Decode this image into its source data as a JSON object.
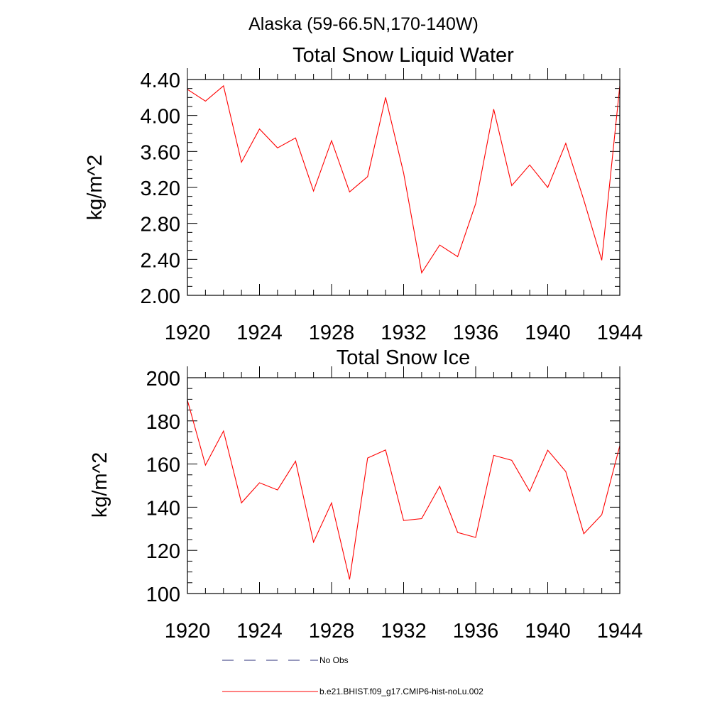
{
  "header": {
    "title": "Alaska (59-66.5N,170-140W)"
  },
  "chart_data": [
    {
      "type": "line",
      "title": "Total Snow Liquid Water",
      "ylabel": "kg/m^2",
      "xlabel": "",
      "xlim": [
        1920,
        1944
      ],
      "ylim": [
        2.0,
        4.4
      ],
      "xticks": [
        "1920",
        "1924",
        "1928",
        "1932",
        "1936",
        "1940",
        "1944"
      ],
      "yticks": [
        "2.00",
        "2.40",
        "2.80",
        "3.20",
        "3.60",
        "4.00",
        "4.40"
      ],
      "x": [
        1920,
        1921,
        1922,
        1923,
        1924,
        1925,
        1926,
        1927,
        1928,
        1929,
        1930,
        1931,
        1932,
        1933,
        1934,
        1935,
        1936,
        1937,
        1938,
        1939,
        1940,
        1941,
        1942,
        1943,
        1944
      ],
      "series": [
        {
          "name": "b.e21.BHIST.f09_g17.CMIP6-hist-noLu.002",
          "color": "#ff0000",
          "values": [
            4.29,
            4.16,
            4.33,
            3.48,
            3.85,
            3.64,
            3.75,
            3.16,
            3.72,
            3.15,
            3.32,
            4.2,
            3.36,
            2.25,
            2.56,
            2.43,
            3.02,
            4.07,
            3.22,
            3.45,
            3.2,
            3.69,
            3.06,
            2.39,
            4.33
          ]
        }
      ]
    },
    {
      "type": "line",
      "title": "Total Snow Ice",
      "ylabel": "kg/m^2",
      "xlabel": "",
      "xlim": [
        1920,
        1944
      ],
      "ylim": [
        100,
        200
      ],
      "xticks": [
        "1920",
        "1924",
        "1928",
        "1932",
        "1936",
        "1940",
        "1944"
      ],
      "yticks": [
        "100",
        "120",
        "140",
        "160",
        "180",
        "200"
      ],
      "x": [
        1920,
        1921,
        1922,
        1923,
        1924,
        1925,
        1926,
        1927,
        1928,
        1929,
        1930,
        1931,
        1932,
        1933,
        1934,
        1935,
        1936,
        1937,
        1938,
        1939,
        1940,
        1941,
        1942,
        1943,
        1944
      ],
      "series": [
        {
          "name": "b.e21.BHIST.f09_g17.CMIP6-hist-noLu.002",
          "color": "#ff0000",
          "values": [
            189.5,
            159.5,
            175.3,
            142.0,
            151.3,
            148.0,
            161.3,
            123.8,
            142.0,
            106.5,
            162.8,
            166.5,
            133.8,
            134.7,
            149.7,
            128.3,
            126.0,
            164.0,
            161.7,
            147.3,
            166.4,
            156.5,
            127.7,
            136.5,
            168.5
          ]
        }
      ]
    }
  ],
  "legend": {
    "entries": [
      {
        "label": "No Obs",
        "style": "dashed",
        "color": "#2b2f7a"
      },
      {
        "label": "b.e21.BHIST.f09_g17.CMIP6-hist-noLu.002",
        "style": "solid",
        "color": "#ff0000"
      }
    ]
  }
}
